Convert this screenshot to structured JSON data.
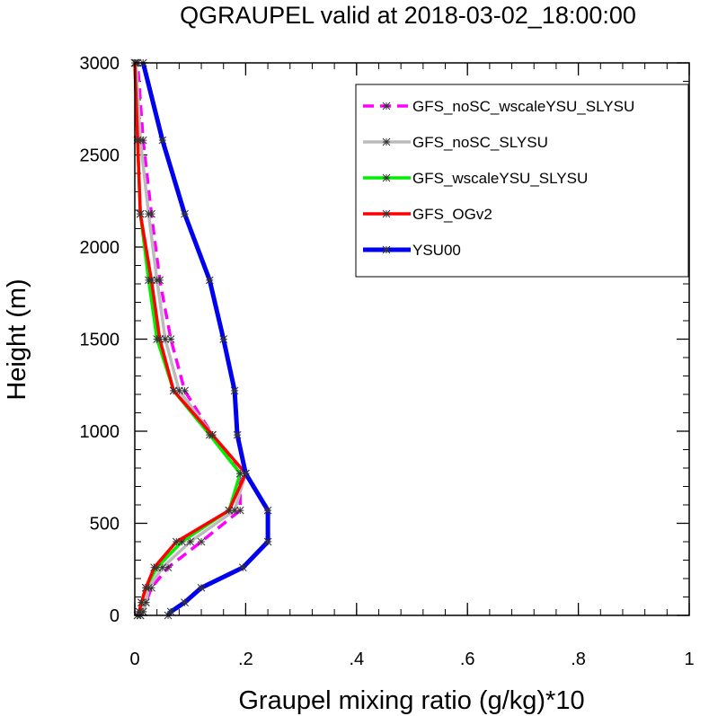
{
  "chart_data": {
    "type": "line",
    "title": "QGRAUPEL valid at 2018-03-02_18:00:00",
    "xlabel": "Graupel mixing ratio (g/kg)*10",
    "ylabel": "Height (m)",
    "xlim": [
      0,
      1
    ],
    "ylim": [
      0,
      3000
    ],
    "x_ticks": [
      0,
      0.2,
      0.4,
      0.6,
      0.8,
      1
    ],
    "x_tick_labels": [
      "0",
      ".2",
      ".4",
      ".6",
      ".8",
      "1"
    ],
    "y_ticks": [
      0,
      500,
      1000,
      1500,
      2000,
      2500,
      3000
    ],
    "y_tick_labels": [
      "0",
      "500",
      "1000",
      "1500",
      "2000",
      "2500",
      "3000"
    ],
    "grid": false,
    "legend_position": "top-right",
    "heights": [
      0,
      20,
      70,
      150,
      260,
      400,
      570,
      770,
      980,
      1220,
      1500,
      1820,
      2180,
      2580,
      3000
    ],
    "series": [
      {
        "name": "GFS_noSC_wscaleYSU_SLYSU",
        "color": "#ff00ff",
        "dash": "dashed",
        "values": [
          0.01,
          0.015,
          0.02,
          0.03,
          0.06,
          0.12,
          0.19,
          0.19,
          0.14,
          0.09,
          0.065,
          0.045,
          0.03,
          0.015,
          0.005
        ]
      },
      {
        "name": "GFS_noSC_SLYSU",
        "color": "#bbbbbb",
        "dash": "solid",
        "values": [
          0.01,
          0.015,
          0.02,
          0.025,
          0.05,
          0.1,
          0.18,
          0.2,
          0.14,
          0.08,
          0.055,
          0.04,
          0.025,
          0.01,
          0.002
        ]
      },
      {
        "name": "GFS_wscaleYSU_SLYSU",
        "color": "#00ee00",
        "dash": "solid",
        "values": [
          0.005,
          0.008,
          0.012,
          0.02,
          0.04,
          0.085,
          0.17,
          0.19,
          0.135,
          0.07,
          0.04,
          0.025,
          0.01,
          0.005,
          0.0
        ]
      },
      {
        "name": "GFS_OGv2",
        "color": "#ff0000",
        "dash": "solid",
        "values": [
          0.005,
          0.008,
          0.012,
          0.02,
          0.035,
          0.075,
          0.17,
          0.2,
          0.14,
          0.07,
          0.045,
          0.03,
          0.01,
          0.005,
          0.0
        ]
      },
      {
        "name": "YSU00",
        "color": "#0000ee",
        "dash": "solid",
        "values": [
          0.06,
          0.065,
          0.09,
          0.12,
          0.195,
          0.24,
          0.24,
          0.2,
          0.185,
          0.18,
          0.16,
          0.135,
          0.09,
          0.05,
          0.015
        ]
      }
    ]
  }
}
